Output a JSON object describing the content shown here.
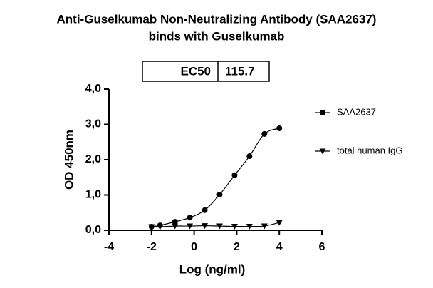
{
  "chart_data": {
    "type": "scatter",
    "title": [
      "Anti-Guselkumab Non-Neutralizing Antibody (SAA2637)",
      "binds with Guselkumab"
    ],
    "x_label": "Log (ng/ml)",
    "y_label": "OD 450nm",
    "annotation": {
      "label": "EC50",
      "value": 115.7
    },
    "xlim": [
      -4,
      6
    ],
    "xticks": [
      -4,
      -2,
      0,
      2,
      4,
      6
    ],
    "ylim": [
      0,
      4
    ],
    "yticks": [
      {
        "value": 0,
        "label": "0,0"
      },
      {
        "value": 1,
        "label": "1,0"
      },
      {
        "value": 2,
        "label": "2,0"
      },
      {
        "value": 3,
        "label": "3,0"
      },
      {
        "value": 4,
        "label": "4,0"
      }
    ],
    "x": [
      -2.0,
      -1.6,
      -0.9,
      -0.2,
      0.5,
      1.2,
      1.9,
      2.6,
      3.3,
      4.0
    ],
    "series": [
      {
        "name": "SAA2637",
        "color": "#000000",
        "marker": "circle",
        "values": [
          0.1,
          0.14,
          0.24,
          0.36,
          0.57,
          1.01,
          1.56,
          2.1,
          2.73,
          2.89
        ]
      },
      {
        "name": "total human IgG",
        "color": "#000000",
        "marker": "triangle-down",
        "values": [
          0.1,
          0.1,
          0.12,
          0.12,
          0.13,
          0.12,
          0.11,
          0.11,
          0.12,
          0.22
        ]
      }
    ]
  }
}
